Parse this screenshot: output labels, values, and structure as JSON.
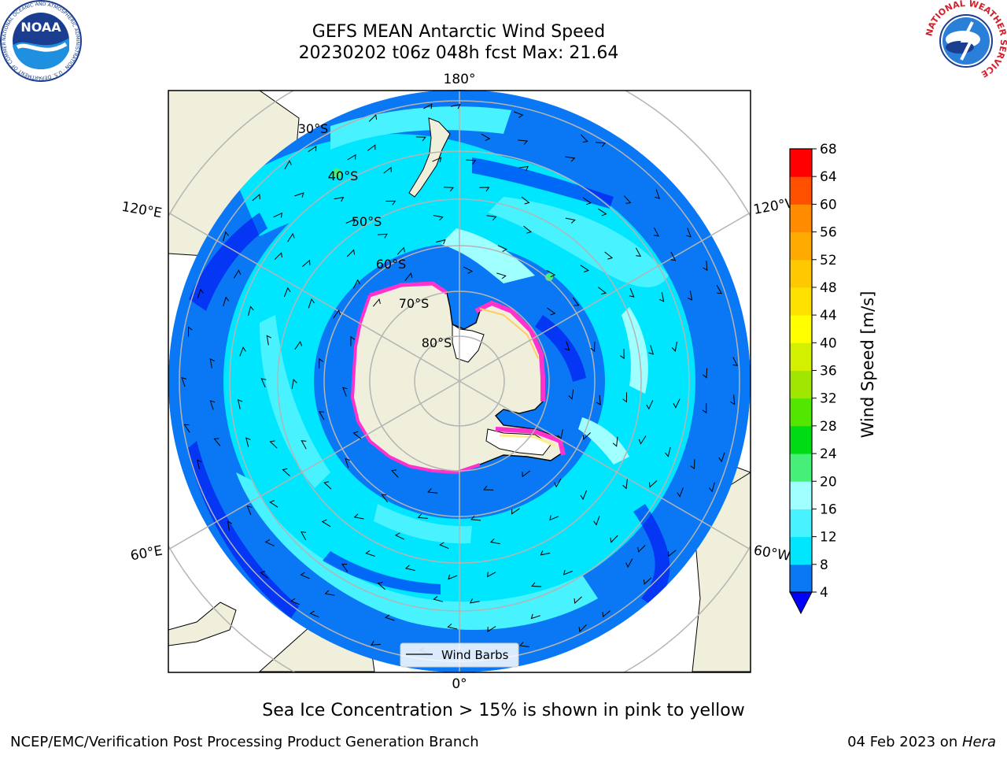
{
  "header": {
    "title_line1": "GEFS MEAN Antarctic Wind Speed",
    "title_line2": "20230202 t06z 048h fcst   Max: 21.64",
    "left_logo_text": "NOAA",
    "left_logo_ring_text": "NATIONAL OCEANIC AND ATMOSPHERIC ADMINISTRATION · U.S. DEPARTMENT OF COMMERCE",
    "right_logo_ring_text": "NATIONAL WEATHER SERVICE"
  },
  "map": {
    "longitude_labels": {
      "top": "180°",
      "bottom": "0°",
      "upper_left": "120°E",
      "lower_left": "60°E",
      "upper_right": "120°W",
      "lower_right": "60°W"
    },
    "latitude_labels": [
      "30°S",
      "40°S",
      "50°S",
      "60°S",
      "70°S",
      "80°S"
    ],
    "legend": {
      "label": "Wind Barbs"
    }
  },
  "colorbar": {
    "label": "Wind Speed [m/s]",
    "ticks": [
      "4",
      "8",
      "12",
      "16",
      "20",
      "24",
      "28",
      "32",
      "36",
      "40",
      "44",
      "48",
      "52",
      "56",
      "60",
      "64",
      "68"
    ],
    "colors": [
      "#0a78f5",
      "#00e6ff",
      "#48f2ff",
      "#a0ffff",
      "#46f078",
      "#00dc14",
      "#52e600",
      "#a0e600",
      "#d2f000",
      "#ffff00",
      "#ffe100",
      "#ffc800",
      "#ffaa00",
      "#ff8c00",
      "#ff5000",
      "#ff0000"
    ],
    "under_color": "#0000ff"
  },
  "footer": {
    "caption": "Sea Ice Concentration > 15% is shown in pink to yellow",
    "left": "NCEP/EMC/Verification Post Processing Product Generation Branch",
    "right_date": "04 Feb 2023 on ",
    "right_machine": "Hera"
  }
}
